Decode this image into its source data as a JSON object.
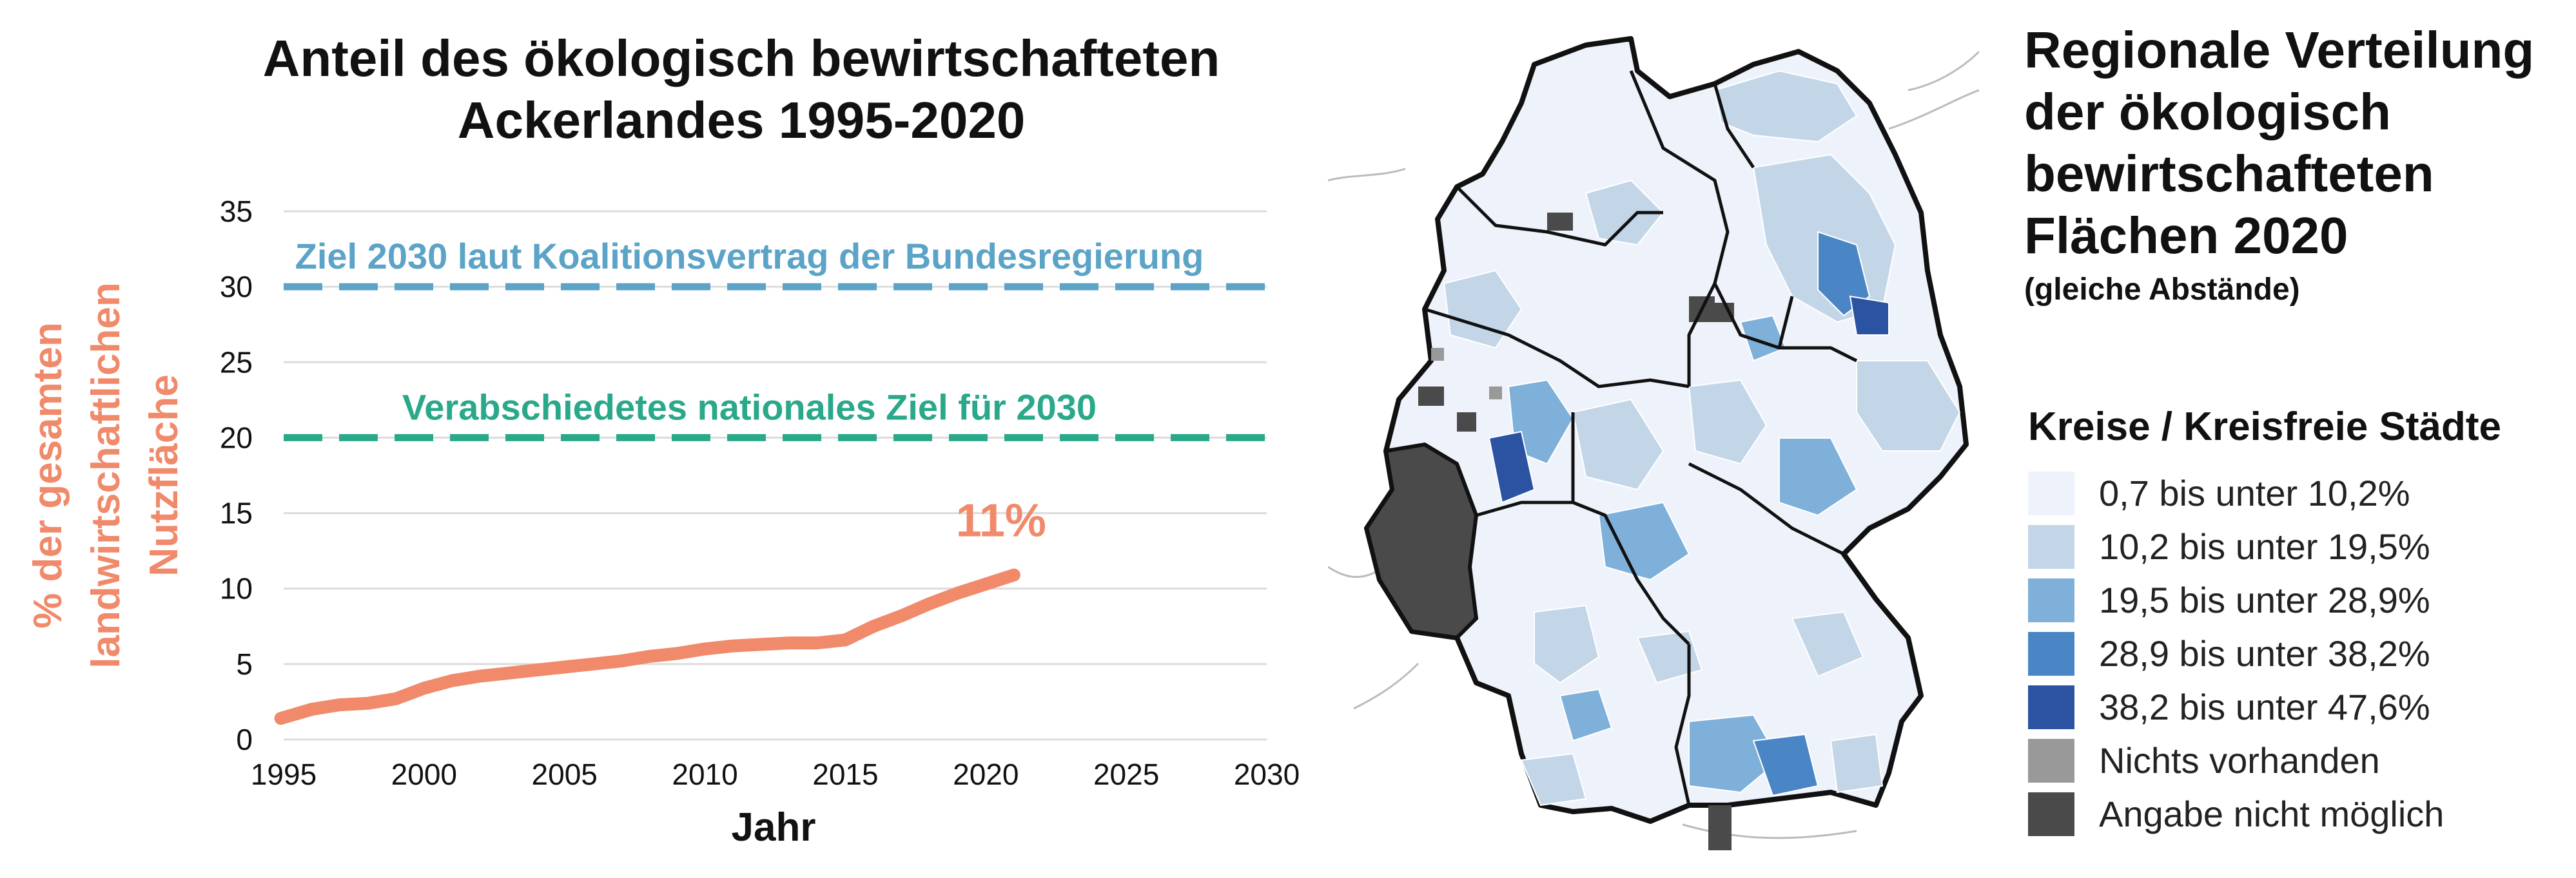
{
  "chart_data": {
    "type": "line",
    "title_lines": [
      "Anteil des ökologisch bewirtschafteten",
      "Ackerlandes 1995-2020"
    ],
    "xlabel": "Jahr",
    "ylabel_lines": [
      "% der gesamten",
      "landwirtschaftlichen",
      "Nutzfläche"
    ],
    "x_ticks": [
      1995,
      2000,
      2005,
      2010,
      2015,
      2020,
      2025,
      2030
    ],
    "y_ticks": [
      0,
      5,
      10,
      15,
      20,
      25,
      30,
      35
    ],
    "xlim": [
      1995,
      2030
    ],
    "ylim": [
      0,
      35
    ],
    "grid": true,
    "series": [
      {
        "color": "#f08a6b",
        "x": [
          1994.9,
          1996,
          1997,
          1998,
          1999,
          2000,
          2001,
          2002,
          2003,
          2004,
          2005,
          2006,
          2007,
          2008,
          2009,
          2010,
          2011,
          2012,
          2013,
          2014,
          2015,
          2016,
          2017,
          2018,
          2019,
          2020,
          2021
        ],
        "y": [
          1.4,
          2.0,
          2.3,
          2.4,
          2.7,
          3.4,
          3.9,
          4.2,
          4.4,
          4.6,
          4.8,
          5.0,
          5.2,
          5.5,
          5.7,
          6.0,
          6.2,
          6.3,
          6.4,
          6.4,
          6.6,
          7.5,
          8.2,
          9.0,
          9.7,
          10.3,
          10.9
        ]
      }
    ],
    "reference_lines": [
      {
        "y": 30,
        "label": "Ziel 2030 laut Koalitionsvertrag der Bundesregierung",
        "color": "#5ba3c7"
      },
      {
        "y": 20,
        "label": "Verabschiedetes nationales Ziel für 2030",
        "color": "#2aa88a"
      }
    ],
    "annotations": [
      {
        "x": 2021,
        "y": 10.9,
        "text": "11%",
        "color": "#f08a6b"
      }
    ]
  },
  "map": {
    "title_lines": [
      "Regionale Verteilung",
      "der ökologisch",
      "bewirtschafteten",
      "Flächen 2020"
    ],
    "subtitle": "(gleiche Abstände)",
    "legend_title": "Kreise / Kreisfreie Städte",
    "legend": [
      {
        "label": "0,7 bis unter 10,2%",
        "color": "#eef2fb"
      },
      {
        "label": "10,2 bis unter 19,5%",
        "color": "#c3d6e8"
      },
      {
        "label": "19,5 bis unter 28,9%",
        "color": "#7eb0da"
      },
      {
        "label": "28,9 bis unter 38,2%",
        "color": "#4a86c5"
      },
      {
        "label": "38,2 bis unter 47,6%",
        "color": "#2b53a1"
      },
      {
        "label": "Nichts vorhanden",
        "color": "#999999"
      },
      {
        "label": "Angabe nicht möglich",
        "color": "#4a4a4a"
      }
    ]
  }
}
